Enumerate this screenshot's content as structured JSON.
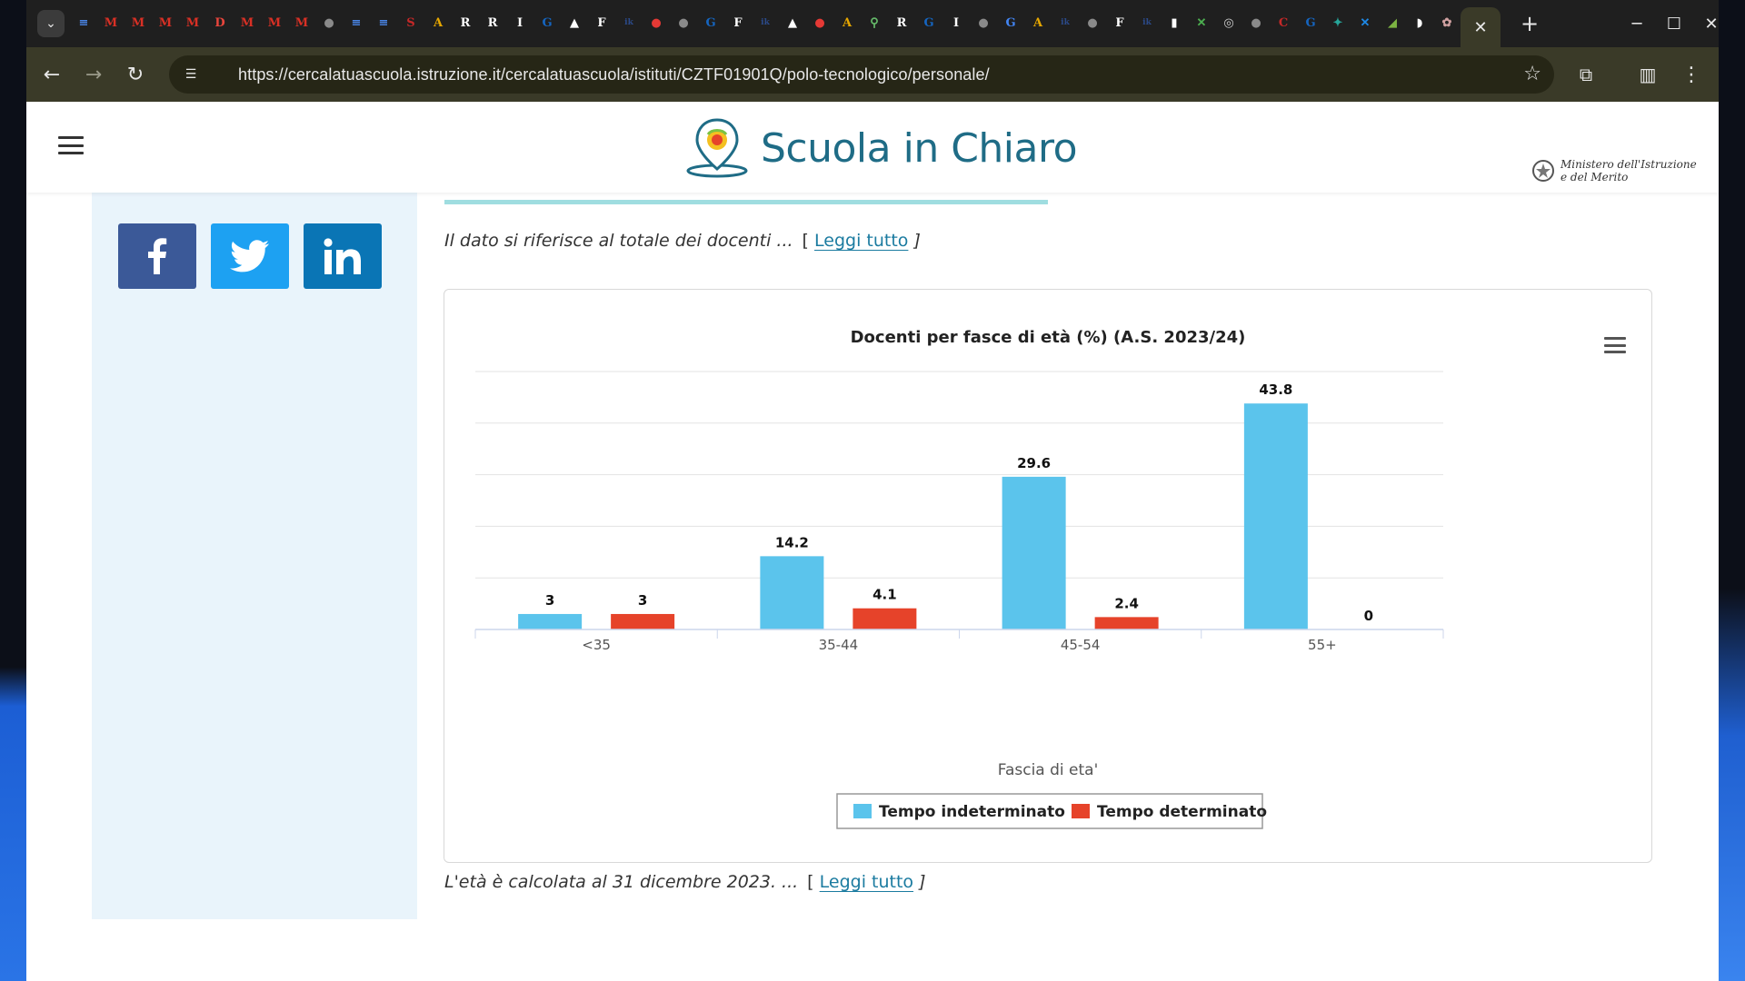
{
  "browser": {
    "url": "https://cercalatuascuola.istruzione.it/cercalatuascuola/istituti/CZTF01901Q/polo-tecnologico/personale/",
    "pinned_tabs": [
      {
        "glyph": "≡",
        "color": "#4a86e8"
      },
      {
        "glyph": "M",
        "color": "#d93025"
      },
      {
        "glyph": "M",
        "color": "#d93025"
      },
      {
        "glyph": "M",
        "color": "#d93025"
      },
      {
        "glyph": "M",
        "color": "#d93025"
      },
      {
        "glyph": "D",
        "color": "#e8453c"
      },
      {
        "glyph": "M",
        "color": "#d93025"
      },
      {
        "glyph": "M",
        "color": "#d93025"
      },
      {
        "glyph": "M",
        "color": "#d93025"
      },
      {
        "glyph": "●",
        "color": "#8a8a8a"
      },
      {
        "glyph": "≡",
        "color": "#4a86e8"
      },
      {
        "glyph": "≡",
        "color": "#4a86e8"
      },
      {
        "glyph": "S",
        "color": "#c62828"
      },
      {
        "glyph": "A",
        "color": "#e6a700"
      },
      {
        "glyph": "R",
        "color": "#ffffff"
      },
      {
        "glyph": "R",
        "color": "#ffffff"
      },
      {
        "glyph": "I",
        "color": "#ffffff"
      },
      {
        "glyph": "G",
        "color": "#1565c0"
      },
      {
        "glyph": "▲",
        "color": "#ffffff"
      },
      {
        "glyph": "F",
        "color": "#ffffff"
      },
      {
        "glyph": "ik",
        "color": "#2b4a8a"
      },
      {
        "glyph": "●",
        "color": "#e53935"
      },
      {
        "glyph": "●",
        "color": "#8a8a8a"
      },
      {
        "glyph": "G",
        "color": "#1565c0"
      },
      {
        "glyph": "F",
        "color": "#ffffff"
      },
      {
        "glyph": "ik",
        "color": "#2b4a8a"
      },
      {
        "glyph": "▲",
        "color": "#ffffff"
      },
      {
        "glyph": "●",
        "color": "#e53935"
      },
      {
        "glyph": "A",
        "color": "#e6a700"
      },
      {
        "glyph": "⚲",
        "color": "#66bb6a"
      },
      {
        "glyph": "R",
        "color": "#ffffff"
      },
      {
        "glyph": "G",
        "color": "#1565c0"
      },
      {
        "glyph": "I",
        "color": "#ffffff"
      },
      {
        "glyph": "●",
        "color": "#8a8a8a"
      },
      {
        "glyph": "G",
        "color": "#4285f4"
      },
      {
        "glyph": "A",
        "color": "#e6a700"
      },
      {
        "glyph": "ik",
        "color": "#2b4a8a"
      },
      {
        "glyph": "●",
        "color": "#8a8a8a"
      },
      {
        "glyph": "F",
        "color": "#ffffff"
      },
      {
        "glyph": "ik",
        "color": "#2b4a8a"
      },
      {
        "glyph": "▮",
        "color": "#ffffff"
      },
      {
        "glyph": "✕",
        "color": "#4caf50"
      },
      {
        "glyph": "◎",
        "color": "#cfcfcf"
      },
      {
        "glyph": "●",
        "color": "#8a8a8a"
      },
      {
        "glyph": "C",
        "color": "#c62828"
      },
      {
        "glyph": "G",
        "color": "#1565c0"
      },
      {
        "glyph": "✦",
        "color": "#26a69a"
      },
      {
        "glyph": "✕",
        "color": "#1e88e5"
      },
      {
        "glyph": "◢",
        "color": "#7cb342"
      },
      {
        "glyph": "◗",
        "color": "#ffffff"
      },
      {
        "glyph": "✿",
        "color": "#cfa0a0"
      }
    ]
  },
  "site": {
    "name": "Scuola in Chiaro",
    "ministry_line1": "Ministero dell'Istruzione",
    "ministry_line2": "e del Merito"
  },
  "notes": {
    "top_text": "Il dato si riferisce al totale dei docenti ...",
    "bottom_text": "L'età è calcolata al 31 dicembre 2023. ...",
    "read_more": "Leggi tutto",
    "bracket_open": "[",
    "bracket_close": "]"
  },
  "colors": {
    "series1": "#5bc4ec",
    "series2": "#e6432a",
    "facebook": "#3b5998",
    "twitter": "#1da1f2",
    "linkedin": "#0a75b5"
  },
  "chart_data": {
    "type": "bar",
    "title": "Docenti per fasce di età (%) (A.S. 2023/24)",
    "xlabel": "Fascia di eta'",
    "ylabel": "",
    "categories": [
      "<35",
      "35-44",
      "45-54",
      "55+"
    ],
    "series": [
      {
        "name": "Tempo indeterminato",
        "values": [
          3,
          14.2,
          29.6,
          43.8
        ]
      },
      {
        "name": "Tempo determinato",
        "values": [
          3,
          4.1,
          2.4,
          0
        ]
      }
    ],
    "ylim": [
      0,
      50
    ],
    "grid": true,
    "legend": "bottom-center"
  }
}
